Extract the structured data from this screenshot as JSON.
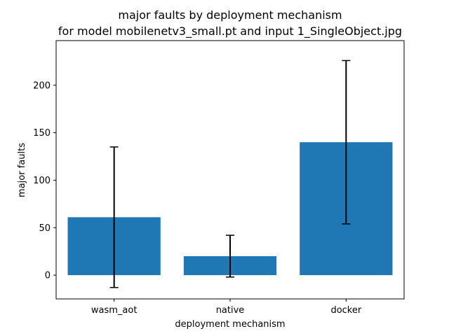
{
  "chart_data": {
    "type": "bar",
    "title": "major faults by deployment mechanism",
    "subtitle": "for model mobilenetv3_small.pt and input 1_SingleObject.jpg",
    "xlabel": "deployment mechanism",
    "ylabel": "major faults",
    "categories": [
      "wasm_aot",
      "native",
      "docker"
    ],
    "values": [
      61,
      20,
      140
    ],
    "error_low": [
      -13,
      -2,
      54
    ],
    "error_high": [
      135,
      42,
      226
    ],
    "ylim": [
      -25,
      247
    ],
    "yticks": [
      0,
      50,
      100,
      150,
      200
    ],
    "bar_color": "#1f77b4",
    "error_color": "#000000",
    "grid": false,
    "legend": "none"
  }
}
